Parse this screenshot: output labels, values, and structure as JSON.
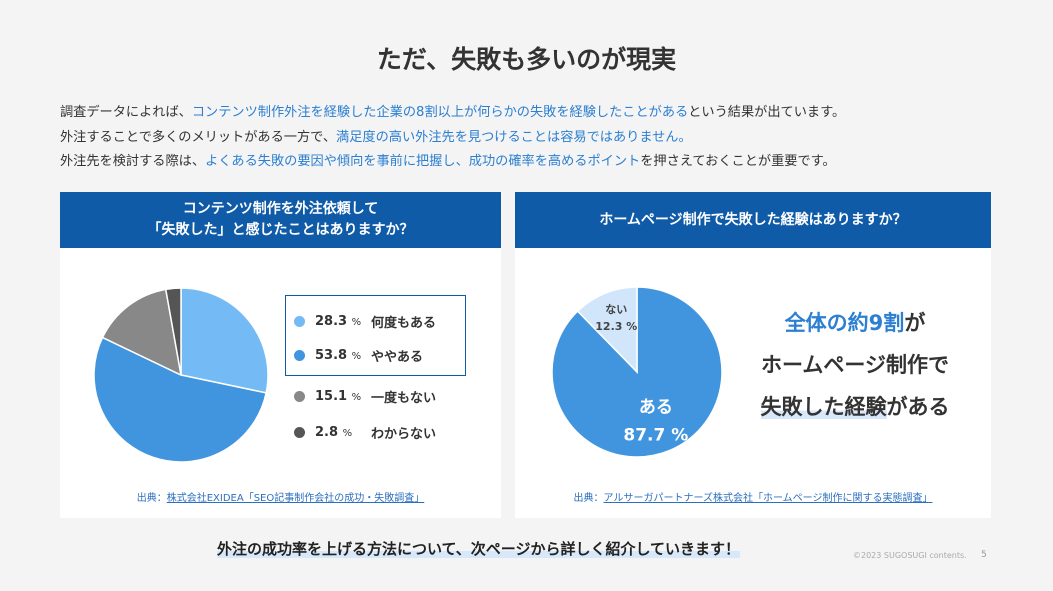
{
  "title": "ただ、失敗も多いのが現実",
  "intro": {
    "l1a": "調査データによれば、",
    "l1b": "コンテンツ制作外注を経験した企業の8割以上が何らかの失敗を経験したことがある",
    "l1c": "という結果が出ています。",
    "l2a": "外注することで多くのメリットがある一方で、",
    "l2b": "満足度の高い外注先を見つけることは容易ではありません。",
    "l3a": "外注先を検討する際は、",
    "l3b": "よくある失敗の要因や傾向を事前に把握し、成功の確率を高めるポイント",
    "l3c": "を押さえておくことが重要です。"
  },
  "left": {
    "head1": "コンテンツ制作を外注依頼して",
    "head2": "「失敗した」と感じたことはありますか？",
    "source_prefix": "出典：",
    "source": "株式会社EXIDEA「SEO記事制作会社の成功・失敗調査」"
  },
  "right": {
    "head": "ホームページ制作で失敗した経験はありますか？",
    "source_prefix": "出典：",
    "source": "アルサーガパートナーズ株式会社「ホームページ制作に関する実態調査」",
    "big1a": "全体の約9割",
    "big1b": "が",
    "big2": "ホームページ制作で",
    "big3a": "失敗した経験",
    "big3b": "がある"
  },
  "chart_data": [
    {
      "type": "pie",
      "unit": "%",
      "categories": [
        "何度もある",
        "ややある",
        "一度もない",
        "わからない"
      ],
      "values": [
        28.3,
        53.8,
        15.1,
        2.8
      ],
      "colors": [
        "#74baf5",
        "#4195de",
        "#888888",
        "#555555"
      ]
    },
    {
      "type": "pie",
      "unit": "%",
      "categories": [
        "ある",
        "ない"
      ],
      "values": [
        87.7,
        12.3
      ],
      "colors": [
        "#4195de",
        "#d2e6fb"
      ]
    }
  ],
  "bottom": "外注の成功率を上げる方法について、次ページから詳しく紹介していきます！",
  "copyright": "©2023 SUGOSUGI contents.",
  "page": "5"
}
